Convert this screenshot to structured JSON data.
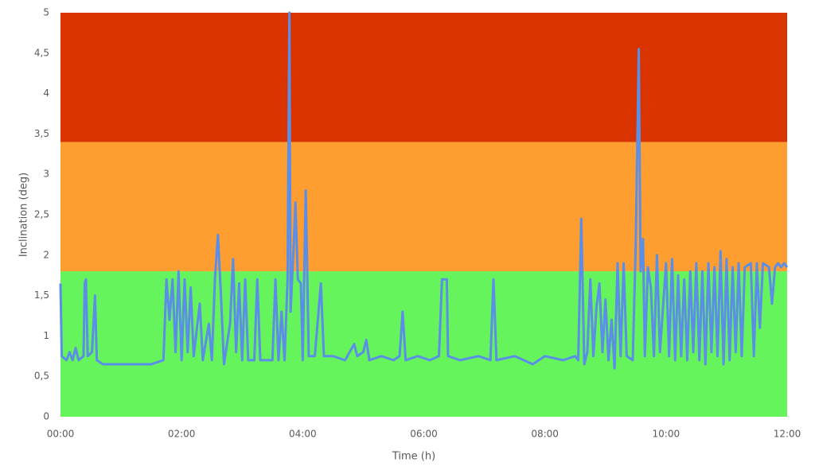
{
  "chart_data": {
    "type": "line",
    "xlabel": "Time (h)",
    "ylabel": "Inclination (deg)",
    "xlim": [
      0,
      12
    ],
    "ylim": [
      0,
      5
    ],
    "xticks": [
      {
        "value": 0,
        "label": "00:00"
      },
      {
        "value": 2,
        "label": "02:00"
      },
      {
        "value": 4,
        "label": "04:00"
      },
      {
        "value": 6,
        "label": "06:00"
      },
      {
        "value": 8,
        "label": "08:00"
      },
      {
        "value": 10,
        "label": "10:00"
      },
      {
        "value": 12,
        "label": "12:00"
      }
    ],
    "yticks": [
      0,
      {
        "value": 0.5,
        "label": "0,5"
      },
      1,
      {
        "value": 1.5,
        "label": "1,5"
      },
      2,
      {
        "value": 2.5,
        "label": "2,5"
      },
      3,
      {
        "value": 3.5,
        "label": "3,5"
      },
      4,
      {
        "value": 4.5,
        "label": "4,5"
      },
      5
    ],
    "bands": [
      {
        "from": 0,
        "to": 1.8,
        "color": "#66f45c"
      },
      {
        "from": 1.8,
        "to": 3.4,
        "color": "#fe9d30"
      },
      {
        "from": 3.4,
        "to": 5,
        "color": "#d93300"
      }
    ],
    "x": [
      0,
      0.02,
      0.1,
      0.15,
      0.2,
      0.25,
      0.3,
      0.38,
      0.4,
      0.42,
      0.45,
      0.52,
      0.57,
      0.6,
      0.7,
      1.0,
      1.3,
      1.5,
      1.7,
      1.75,
      1.8,
      1.85,
      1.9,
      1.95,
      2.0,
      2.05,
      2.1,
      2.15,
      2.2,
      2.3,
      2.35,
      2.45,
      2.5,
      2.55,
      2.6,
      2.65,
      2.7,
      2.8,
      2.85,
      2.9,
      2.95,
      3.0,
      3.05,
      3.1,
      3.2,
      3.25,
      3.3,
      3.5,
      3.55,
      3.6,
      3.65,
      3.7,
      3.75,
      3.78,
      3.8,
      3.85,
      3.88,
      3.92,
      3.97,
      4.0,
      4.05,
      4.1,
      4.2,
      4.3,
      4.35,
      4.5,
      4.7,
      4.85,
      4.9,
      5.0,
      5.05,
      5.1,
      5.3,
      5.5,
      5.6,
      5.65,
      5.7,
      5.9,
      6.1,
      6.25,
      6.3,
      6.38,
      6.4,
      6.6,
      6.9,
      7.1,
      7.15,
      7.2,
      7.5,
      7.8,
      8.0,
      8.3,
      8.5,
      8.55,
      8.6,
      8.65,
      8.7,
      8.75,
      8.8,
      8.85,
      8.9,
      8.95,
      9.0,
      9.05,
      9.1,
      9.15,
      9.2,
      9.25,
      9.3,
      9.35,
      9.45,
      9.5,
      9.55,
      9.58,
      9.62,
      9.65,
      9.7,
      9.75,
      9.8,
      9.85,
      9.9,
      10.0,
      10.05,
      10.1,
      10.15,
      10.2,
      10.25,
      10.3,
      10.35,
      10.4,
      10.45,
      10.5,
      10.55,
      10.6,
      10.65,
      10.7,
      10.75,
      10.8,
      10.85,
      10.9,
      10.95,
      11.0,
      11.05,
      11.1,
      11.15,
      11.2,
      11.25,
      11.3,
      11.4,
      11.45,
      11.5,
      11.55,
      11.6,
      11.7,
      11.75,
      11.8,
      11.85,
      11.9,
      11.95,
      12.0
    ],
    "series": [
      {
        "color": "#5b8ee6",
        "values": [
          1.65,
          0.75,
          0.7,
          0.8,
          0.7,
          0.85,
          0.7,
          0.75,
          1.65,
          1.7,
          0.75,
          0.8,
          1.5,
          0.7,
          0.65,
          0.65,
          0.65,
          0.65,
          0.7,
          1.7,
          1.2,
          1.7,
          0.8,
          1.8,
          0.7,
          1.7,
          0.8,
          1.6,
          0.75,
          1.4,
          0.7,
          1.15,
          0.7,
          1.7,
          2.25,
          1.5,
          0.65,
          1.15,
          1.95,
          0.8,
          1.65,
          0.7,
          1.7,
          0.7,
          0.7,
          1.7,
          0.7,
          0.7,
          1.7,
          0.7,
          1.3,
          0.7,
          1.7,
          5.0,
          1.3,
          2.1,
          2.65,
          1.7,
          1.65,
          0.7,
          2.8,
          0.75,
          0.75,
          1.65,
          0.75,
          0.75,
          0.7,
          0.9,
          0.75,
          0.8,
          0.95,
          0.7,
          0.75,
          0.7,
          0.75,
          1.3,
          0.7,
          0.75,
          0.7,
          0.75,
          1.7,
          1.7,
          0.75,
          0.7,
          0.75,
          0.7,
          1.7,
          0.7,
          0.75,
          0.65,
          0.75,
          0.7,
          0.75,
          0.7,
          2.45,
          0.65,
          0.8,
          1.7,
          0.75,
          1.35,
          1.65,
          0.8,
          1.45,
          0.7,
          1.2,
          0.6,
          1.9,
          0.75,
          1.9,
          0.75,
          0.7,
          2.15,
          4.55,
          1.8,
          2.2,
          0.75,
          1.85,
          1.6,
          0.75,
          2.0,
          0.8,
          1.9,
          0.75,
          1.95,
          0.7,
          1.75,
          0.75,
          1.7,
          0.7,
          1.8,
          0.8,
          1.9,
          0.7,
          1.8,
          0.65,
          1.9,
          0.8,
          1.85,
          0.75,
          2.05,
          0.65,
          1.95,
          0.7,
          1.85,
          0.8,
          1.9,
          0.75,
          1.85,
          1.9,
          0.75,
          1.9,
          1.1,
          1.9,
          1.85,
          1.4,
          1.85,
          1.9,
          1.85,
          1.9,
          1.85
        ]
      }
    ]
  }
}
